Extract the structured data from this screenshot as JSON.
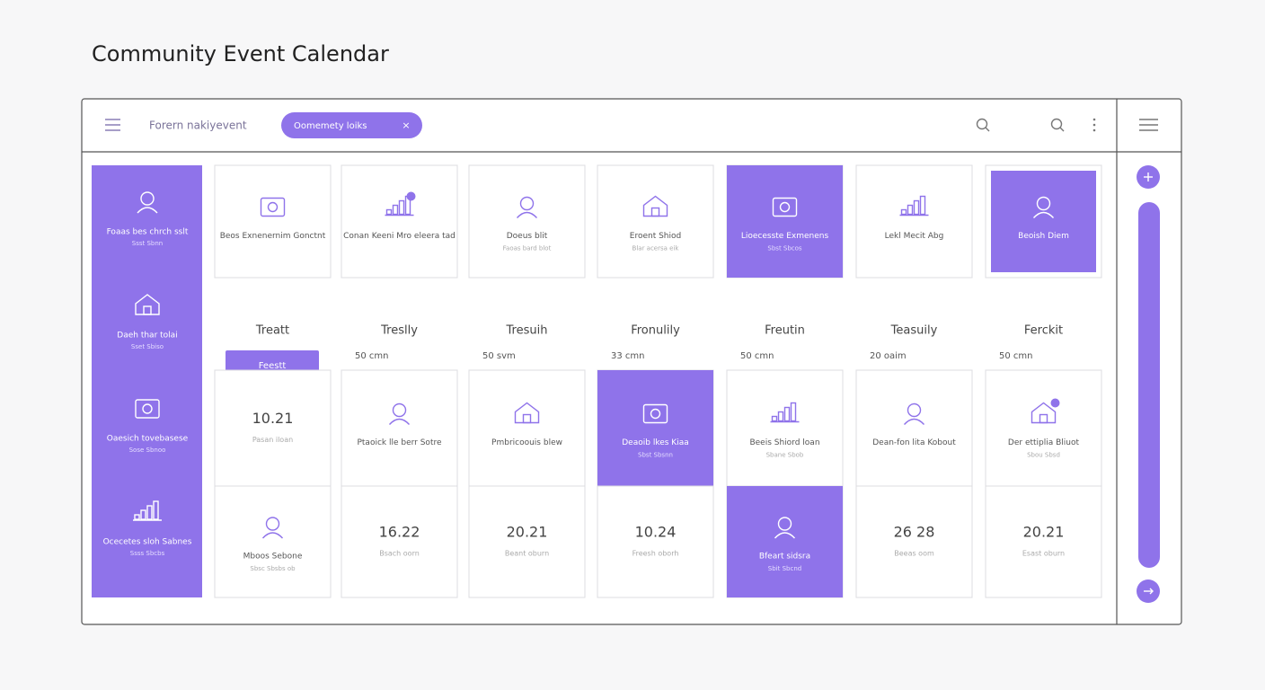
{
  "header": {
    "title": "Community Event Calendar"
  },
  "toolbar": {
    "search_text": "Forern nakiyevent",
    "filter_chip": {
      "label": "Oomemety loiks",
      "close": "×"
    }
  },
  "sidebar": {
    "items": [
      {
        "title": "Foaas bes chrch sslt",
        "subtitle": "Ssst Sbnn"
      },
      {
        "title": "Daeh thar tolai",
        "subtitle": "Sset Sbiso"
      },
      {
        "title": "Oaesich tovebasese",
        "subtitle": "Sose Sbnoo"
      },
      {
        "title": "Ocecetes sloh Sabnes",
        "subtitle": "Ssss Sbcbs"
      }
    ]
  },
  "calendar": {
    "top_row": [
      {
        "title": "Beos Exnenernim Gonctnt"
      },
      {
        "title": "Conan Keeni Mro eleera tad"
      },
      {
        "title": "Doeus blit",
        "subtitle": "Faoas bard blot"
      },
      {
        "title": "Eroent Shiod",
        "subtitle": "Blar acersa eik"
      },
      {
        "title": "Lioecesste Exmenens",
        "subtitle": "Sbst Sbcos",
        "highlighted": true
      },
      {
        "title": "Lekl Mecit Abg"
      },
      {
        "title": "Beoish Diem",
        "highlighted": true
      }
    ],
    "columns": [
      {
        "name": "Treatt",
        "button": "Feestt"
      },
      {
        "name": "Treslly",
        "count": "50 cmn"
      },
      {
        "name": "Tresuih",
        "count": "50 svm"
      },
      {
        "name": "Fronulily",
        "count": "33 cmn"
      },
      {
        "name": "Freutin",
        "count": "50 cmn"
      },
      {
        "name": "Teasuily",
        "count": "20 oaim"
      },
      {
        "name": "Ferckit",
        "count": "50 cmn"
      }
    ],
    "row_a": [
      {
        "date": "10.21",
        "subtitle": "Pasan iloan"
      },
      {
        "title": "Ptaoick lle berr Sotre"
      },
      {
        "title": "Pmbricoouis blew"
      },
      {
        "title": "Deaoib lkes Kiaa",
        "subtitle": "Sbst Sbsnn",
        "highlighted": true
      },
      {
        "title": "Beeis Shiord loan",
        "subtitle": "Sbane Sbob"
      },
      {
        "title": "Dean-fon lita Kobout"
      },
      {
        "title": "Der ettiplia Bliuot",
        "subtitle": "Sbou Sbsd"
      }
    ],
    "row_b": [
      {
        "title": "Mboos Sebone",
        "subtitle": "Sbsc Sbsbs ob"
      },
      {
        "date": "16.22",
        "subtitle": "Bsach oorn"
      },
      {
        "date": "20.21",
        "subtitle": "Beant oburn"
      },
      {
        "date": "10.24",
        "subtitle": "Freesh oborh"
      },
      {
        "title": "Bfeart sidsra",
        "subtitle": "Sbit Sbcnd",
        "highlighted": true
      },
      {
        "date": "26 28",
        "subtitle": "Beeas oom"
      },
      {
        "date": "20.21",
        "subtitle": "Esast oburn"
      }
    ]
  }
}
